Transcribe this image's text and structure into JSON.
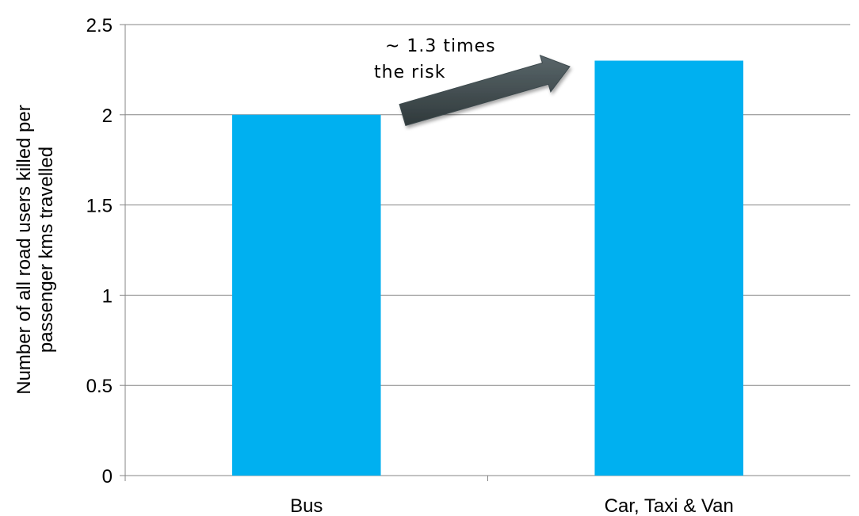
{
  "chart_data": {
    "type": "bar",
    "categories": [
      "Bus",
      "Car, Taxi & Van"
    ],
    "values": [
      2,
      2.3
    ],
    "ylabel_lines": [
      "Number of all road users killed per",
      "passenger kms travelled"
    ],
    "ylim": [
      0,
      2.5
    ],
    "yticks": [
      "0",
      "0.5",
      "1",
      "1.5",
      "2",
      "2.5"
    ],
    "grid": true,
    "legend": "none",
    "bar_color": "#00b0f0",
    "annotation": {
      "lines": [
        "~ 1.3 times",
        "the risk"
      ],
      "arrow_color": "#3d4a4d"
    }
  }
}
